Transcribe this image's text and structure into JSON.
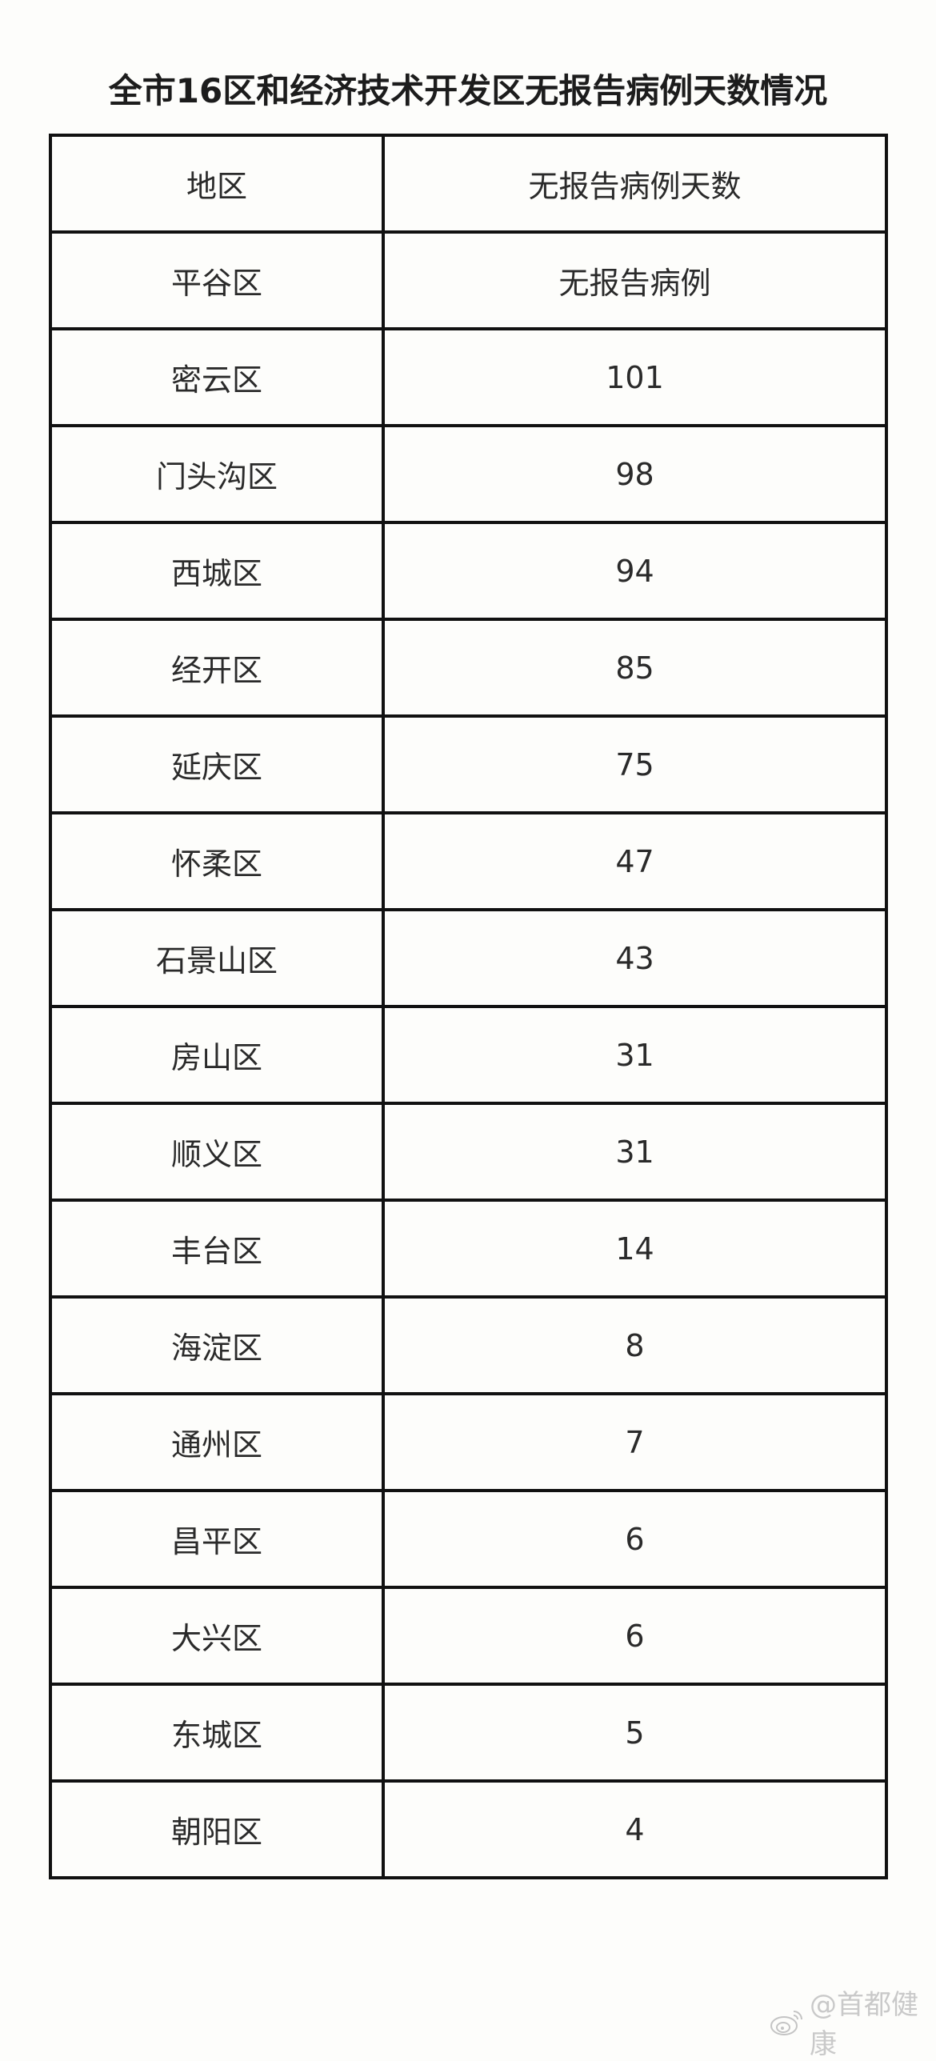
{
  "title": "全市16区和经济技术开发区无报告病例天数情况",
  "table": {
    "headers": [
      "地区",
      "无报告病例天数"
    ],
    "rows": [
      [
        "平谷区",
        "无报告病例"
      ],
      [
        "密云区",
        "101"
      ],
      [
        "门头沟区",
        "98"
      ],
      [
        "西城区",
        "94"
      ],
      [
        "经开区",
        "85"
      ],
      [
        "延庆区",
        "75"
      ],
      [
        "怀柔区",
        "47"
      ],
      [
        "石景山区",
        "43"
      ],
      [
        "房山区",
        "31"
      ],
      [
        "顺义区",
        "31"
      ],
      [
        "丰台区",
        "14"
      ],
      [
        "海淀区",
        "8"
      ],
      [
        "通州区",
        "7"
      ],
      [
        "昌平区",
        "6"
      ],
      [
        "大兴区",
        "6"
      ],
      [
        "东城区",
        "5"
      ],
      [
        "朝阳区",
        "4"
      ]
    ]
  },
  "watermark": {
    "icon": "weibo-logo-icon",
    "text": "@首都健康"
  }
}
